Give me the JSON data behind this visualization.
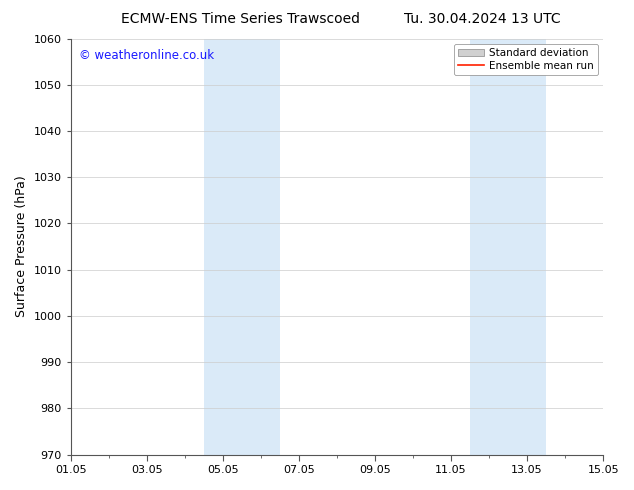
{
  "title_left": "ECMW-ENS Time Series Trawscoed",
  "title_right": "Tu. 30.04.2024 13 UTC",
  "ylabel": "Surface Pressure (hPa)",
  "ylim": [
    970,
    1060
  ],
  "yticks": [
    970,
    980,
    990,
    1000,
    1010,
    1020,
    1030,
    1040,
    1050,
    1060
  ],
  "xtick_labels": [
    "01.05",
    "03.05",
    "05.05",
    "07.05",
    "09.05",
    "11.05",
    "13.05",
    "15.05"
  ],
  "xtick_positions": [
    0,
    2,
    4,
    6,
    8,
    10,
    12,
    14
  ],
  "x_total_days": 14,
  "shaded_bands": [
    {
      "x_start": 3.5,
      "x_end": 5.5
    },
    {
      "x_start": 10.5,
      "x_end": 12.5
    }
  ],
  "shade_color": "#daeaf8",
  "watermark_text": "© weatheronline.co.uk",
  "watermark_color": "#1a1aff",
  "watermark_fontsize": 8.5,
  "legend_std_color": "#d0d0d0",
  "legend_mean_color": "#ff2000",
  "background_color": "#ffffff",
  "grid_color": "#cccccc",
  "title_fontsize": 10,
  "axis_label_fontsize": 9,
  "tick_fontsize": 8
}
